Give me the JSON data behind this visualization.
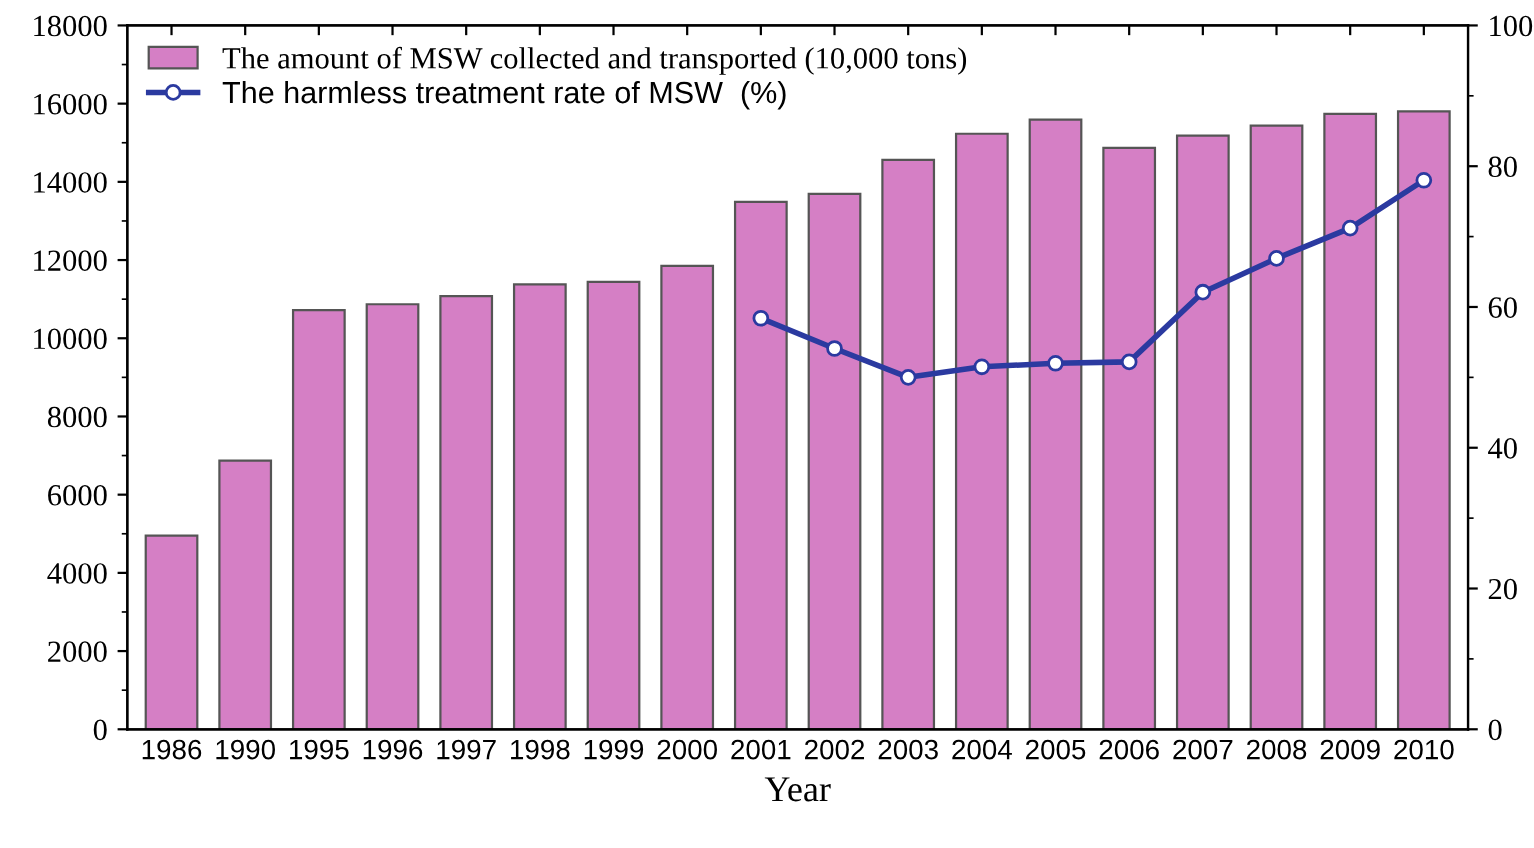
{
  "chart_data": {
    "type": "bar",
    "xlabel": "Year",
    "categories": [
      "1986",
      "1990",
      "1995",
      "1996",
      "1997",
      "1998",
      "1999",
      "2000",
      "2001",
      "2002",
      "2003",
      "2004",
      "2005",
      "2006",
      "2007",
      "2008",
      "2009",
      "2010"
    ],
    "series": [
      {
        "name": "The amount of MSW collected and transported (10,000 tons)",
        "color": "#d57fc5",
        "values": [
          4950,
          6870,
          10720,
          10870,
          11080,
          11380,
          11440,
          11850,
          13490,
          13690,
          14560,
          15230,
          15590,
          14870,
          15180,
          15440,
          15740,
          15800
        ]
      },
      {
        "name": "The harmless treatment rate of MSW  (%)",
        "type": "line",
        "axis": "y2",
        "color": "#2b3aa0",
        "values": [
          null,
          null,
          null,
          null,
          null,
          null,
          null,
          null,
          58.4,
          54.1,
          50.0,
          51.5,
          52.0,
          52.2,
          62.1,
          66.9,
          71.2,
          78.0
        ]
      }
    ],
    "ylim": [
      0,
      18000
    ],
    "yticks": [
      0,
      2000,
      4000,
      6000,
      8000,
      10000,
      12000,
      14000,
      16000,
      18000
    ],
    "y2lim": [
      0,
      100
    ],
    "y2ticks": [
      0,
      20,
      40,
      60,
      80,
      100
    ],
    "legend": "top left",
    "marker": "circle",
    "line_style": "solid",
    "grid": false
  }
}
